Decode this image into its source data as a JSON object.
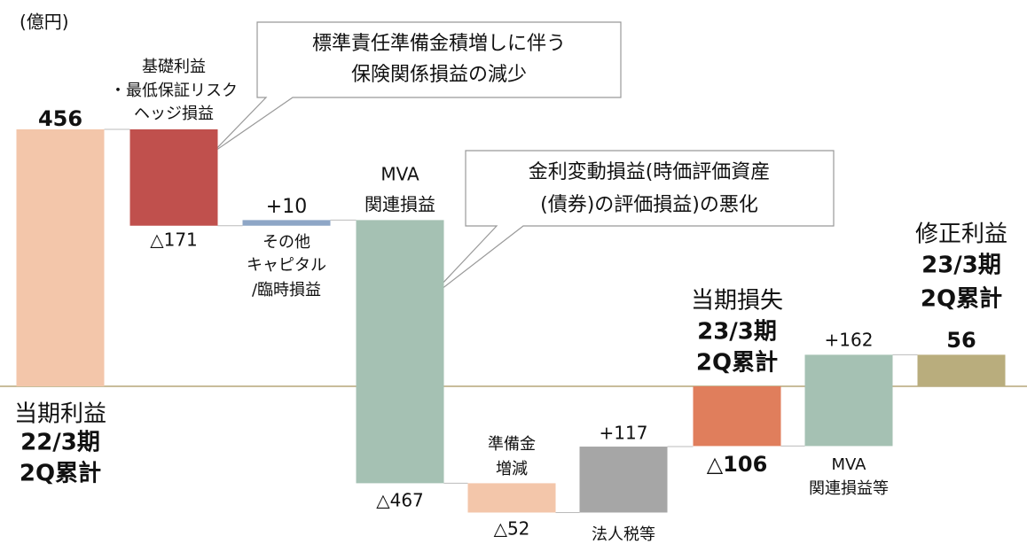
{
  "chart_data": {
    "type": "waterfall",
    "unit": "(億円)",
    "categories": [
      [
        "当期利益",
        "22/3期",
        "2Q累計"
      ],
      [
        "基礎利益",
        "・最低保証リスク",
        "ヘッジ損益"
      ],
      [
        "その他",
        "キャピタル",
        "/臨時損益"
      ],
      [
        "MVA",
        "関連損益"
      ],
      [
        "準備金",
        "増減"
      ],
      [
        "法人税等"
      ],
      [
        "当期損失",
        "23/3期",
        "2Q累計"
      ],
      [
        "MVA",
        "関連損益等"
      ],
      [
        "修正利益",
        "23/3期",
        "2Q累計"
      ]
    ],
    "values": [
      456,
      -171,
      10,
      -467,
      -52,
      117,
      -106,
      162,
      56
    ],
    "value_labels": [
      "456",
      "△171",
      "+10",
      "△467",
      "△52",
      "+117",
      "△106",
      "+162",
      "56"
    ],
    "measure": [
      "absolute",
      "relative",
      "relative",
      "relative",
      "relative",
      "relative",
      "absolute",
      "relative",
      "absolute"
    ],
    "colors": [
      "#f3c6aa",
      "#c0504d",
      "#8ea6c6",
      "#a5c1b3",
      "#f3c6aa",
      "#a6a6a6",
      "#e07e5c",
      "#a5c1b3",
      "#b9ad7d"
    ],
    "ylim": [
      -250,
      500
    ],
    "annotations": [
      [
        "標準責任準備金積増しに伴う",
        "保険関係損益の減少"
      ],
      [
        "金利変動損益(時価評価資産",
        "(債券)の評価損益)の悪化"
      ]
    ]
  }
}
